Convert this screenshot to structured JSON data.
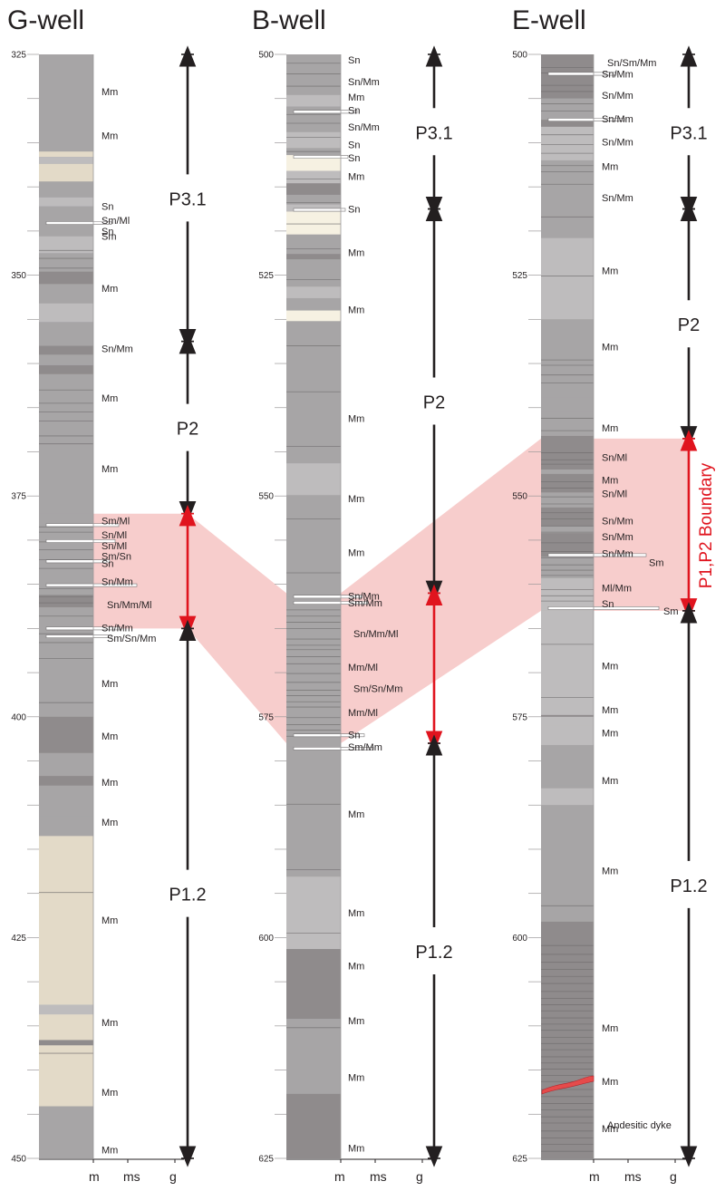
{
  "colors": {
    "mud": "#a7a5a6",
    "mud_dark": "#8f8b8c",
    "mud_light": "#bebcbd",
    "sand": "#e3dac8",
    "sand_light": "#f6f1e2",
    "bed_line": "#6f6c6d",
    "correlation_fill": "#f6c8c6",
    "boundary_red": "#e0141e",
    "arrow": "#231f20"
  },
  "grain_axis": [
    "m",
    "ms",
    "g"
  ],
  "boundary_label": "P1,P2 Boundary",
  "wells": [
    {
      "name": "G-well",
      "depth_range": [
        325,
        450
      ],
      "depth_ticks": [
        "325",
        "350",
        "375",
        "400",
        "425",
        "450"
      ],
      "units": [
        {
          "label": "P3.1",
          "top": 325,
          "bottom": 357.5,
          "boundary": false
        },
        {
          "label": "P2",
          "top": 357.5,
          "bottom": 377,
          "boundary": false
        },
        {
          "label": "",
          "top": 377,
          "bottom": 390,
          "boundary": true
        },
        {
          "label": "P1.2",
          "top": 390,
          "bottom": 450,
          "boundary": false
        }
      ],
      "facies": [
        {
          "label": "Mm",
          "depth": 329.2
        },
        {
          "label": "Mm",
          "depth": 334.2
        },
        {
          "label": "Sn",
          "depth": 342.2
        },
        {
          "label": "Sm/Ml",
          "depth": 343.8
        },
        {
          "label": "Sn",
          "depth": 345.0
        },
        {
          "label": "Sm",
          "depth": 345.6
        },
        {
          "label": "Mm",
          "depth": 351.5
        },
        {
          "label": "Sn/Mm",
          "depth": 358.3
        },
        {
          "label": "Mm",
          "depth": 363.9
        },
        {
          "label": "Mm",
          "depth": 371.9
        },
        {
          "label": "Sm/Ml",
          "depth": 377.8
        },
        {
          "label": "Sn/Ml",
          "depth": 379.4
        },
        {
          "label": "Sn/Ml",
          "depth": 380.6
        },
        {
          "label": "Sm/Sn",
          "depth": 381.8
        },
        {
          "label": "Sn",
          "depth": 382.6
        },
        {
          "label": "Sn/Mm",
          "depth": 384.7
        },
        {
          "label": "Sn/Mm/Ml",
          "depth": 387.3
        },
        {
          "label": "Sn/Mm",
          "depth": 389.9
        },
        {
          "label": "Sm/Sn/Mm",
          "depth": 391.1
        },
        {
          "label": "Mm",
          "depth": 396.2
        },
        {
          "label": "Mm",
          "depth": 402.2
        },
        {
          "label": "Mm",
          "depth": 407.4
        },
        {
          "label": "Mm",
          "depth": 411.9
        },
        {
          "label": "Mm",
          "depth": 423.0
        },
        {
          "label": "Mm",
          "depth": 434.6
        },
        {
          "label": "Mm",
          "depth": 442.5
        },
        {
          "label": "Mm",
          "depth": 449.0
        }
      ]
    },
    {
      "name": "B-well",
      "depth_range": [
        500,
        625
      ],
      "depth_ticks": [
        "500",
        "525",
        "550",
        "575",
        "600",
        "625"
      ],
      "units": [
        {
          "label": "P3.1",
          "top": 500,
          "bottom": 517.5,
          "boundary": false
        },
        {
          "label": "P2",
          "top": 517.5,
          "bottom": 561,
          "boundary": false
        },
        {
          "label": "",
          "top": 561,
          "bottom": 578,
          "boundary": true
        },
        {
          "label": "P1.2",
          "top": 578,
          "bottom": 625,
          "boundary": false
        }
      ],
      "facies": [
        {
          "label": "Sn",
          "depth": 500.6
        },
        {
          "label": "Sn/Mm",
          "depth": 503.1
        },
        {
          "label": "Mm",
          "depth": 504.8
        },
        {
          "label": "Sn",
          "depth": 506.3
        },
        {
          "label": "Sn/Mm",
          "depth": 508.2
        },
        {
          "label": "Sn",
          "depth": 510.2
        },
        {
          "label": "Sn",
          "depth": 511.7
        },
        {
          "label": "Mm",
          "depth": 513.8
        },
        {
          "label": "Sn",
          "depth": 517.5
        },
        {
          "label": "Mm",
          "depth": 522.4
        },
        {
          "label": "Mm",
          "depth": 528.9
        },
        {
          "label": "Mm",
          "depth": 541.2
        },
        {
          "label": "Mm",
          "depth": 550.3
        },
        {
          "label": "Mm",
          "depth": 556.4
        },
        {
          "label": "Sn/Mm",
          "depth": 561.3
        },
        {
          "label": "Sm/Mm",
          "depth": 562.1
        },
        {
          "label": "Sn/Mm/Ml",
          "depth": 565.6
        },
        {
          "label": "Mm/Ml",
          "depth": 569.4
        },
        {
          "label": "Sm/Sn/Mm",
          "depth": 571.8
        },
        {
          "label": "Mm/Ml",
          "depth": 574.5
        },
        {
          "label": "Sn",
          "depth": 577.0
        },
        {
          "label": "Sm/Mm",
          "depth": 578.4
        },
        {
          "label": "Mm",
          "depth": 586.0
        },
        {
          "label": "Mm",
          "depth": 597.2
        },
        {
          "label": "Mm",
          "depth": 603.2
        },
        {
          "label": "Mm",
          "depth": 609.4
        },
        {
          "label": "Mm",
          "depth": 615.8
        },
        {
          "label": "Mm",
          "depth": 623.8
        }
      ]
    },
    {
      "name": "E-well",
      "depth_range": [
        500,
        625
      ],
      "depth_ticks": [
        "500",
        "525",
        "550",
        "575",
        "600",
        "625"
      ],
      "units": [
        {
          "label": "P3.1",
          "top": 500,
          "bottom": 517.5,
          "boundary": false
        },
        {
          "label": "P2",
          "top": 517.5,
          "bottom": 543.5,
          "boundary": false
        },
        {
          "label": "",
          "top": 543.5,
          "bottom": 563,
          "boundary": true
        },
        {
          "label": "P1.2",
          "top": 563,
          "bottom": 625,
          "boundary": false
        }
      ],
      "facies": [
        {
          "label": "Sn/Sm/Mm",
          "depth": 500.9
        },
        {
          "label": "Sn/Mm",
          "depth": 502.2
        },
        {
          "label": "Sn/Mm",
          "depth": 504.6
        },
        {
          "label": "Sn/Mm",
          "depth": 507.3
        },
        {
          "label": "Sn/Mm",
          "depth": 509.9
        },
        {
          "label": "Mm",
          "depth": 512.7
        },
        {
          "label": "Sn/Mm",
          "depth": 516.2
        },
        {
          "label": "Mm",
          "depth": 524.5
        },
        {
          "label": "Mm",
          "depth": 533.1
        },
        {
          "label": "Mm",
          "depth": 542.3
        },
        {
          "label": "Sn/Ml",
          "depth": 545.6
        },
        {
          "label": "Mm",
          "depth": 548.2
        },
        {
          "label": "Sn/Ml",
          "depth": 549.7
        },
        {
          "label": "Sn/Mm",
          "depth": 552.8
        },
        {
          "label": "Sn/Mm",
          "depth": 554.6
        },
        {
          "label": "Sn/Mm",
          "depth": 556.5
        },
        {
          "label": "Sm",
          "depth": 557.5
        },
        {
          "label": "Ml/Mm",
          "depth": 560.4
        },
        {
          "label": "Sn",
          "depth": 562.2
        },
        {
          "label": "Sm",
          "depth": 563.0
        },
        {
          "label": "Mm",
          "depth": 569.2
        },
        {
          "label": "Mm",
          "depth": 574.2
        },
        {
          "label": "Mm",
          "depth": 576.8
        },
        {
          "label": "Mm",
          "depth": 582.2
        },
        {
          "label": "Mm",
          "depth": 592.4
        },
        {
          "label": "Mm",
          "depth": 610.2
        },
        {
          "label": "Mm",
          "depth": 616.3
        },
        {
          "label": "Andesitic dyke",
          "depth": 621.2
        },
        {
          "label": "Mm",
          "depth": 621.6
        }
      ]
    }
  ]
}
